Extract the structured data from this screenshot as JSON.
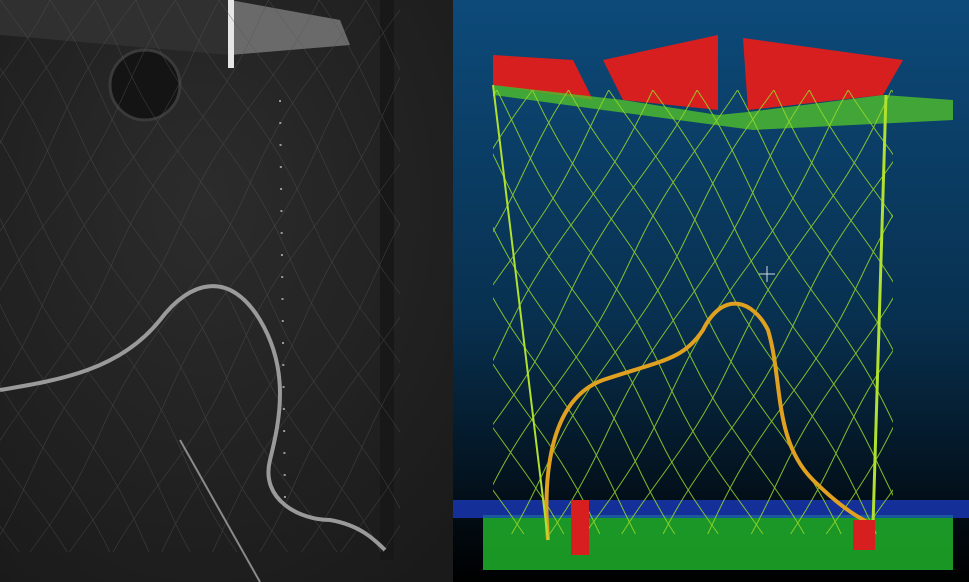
{
  "left_panel": {
    "kind": "grayscale underwater camera photo of a net",
    "colors": {
      "background": "#262626",
      "net": "#8a8a8a",
      "rope": "#b0b0b0"
    }
  },
  "right_panel": {
    "kind": "colored point cloud of the same net",
    "colors": {
      "background_top": "#0d4a7a",
      "background_bottom": "#000000",
      "net": "#9ad82a",
      "frame_top": "#d81f1f",
      "floor": "#1fb02a",
      "low_points": "#1d3fd0"
    }
  }
}
